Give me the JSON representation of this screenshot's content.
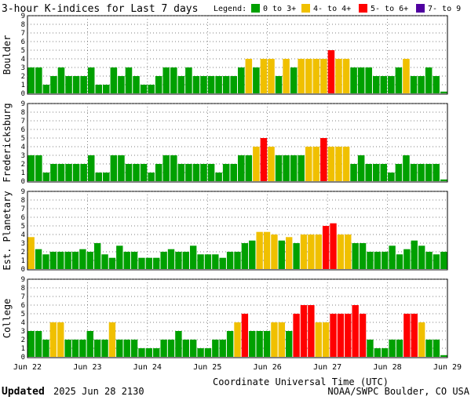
{
  "chart_data": {
    "type": "bar",
    "title": "3-hour K-indices for Last 7 days",
    "legend": {
      "label": "Legend:",
      "entries": [
        {
          "label": "0 to 3+",
          "color": "#00a000"
        },
        {
          "label": "4- to 4+",
          "color": "#f0c000"
        },
        {
          "label": "5- to 6+",
          "color": "#ff0000"
        },
        {
          "label": "7- to 9",
          "color": "#5000a0"
        }
      ]
    },
    "xlabel": "Coordinate Universal Time (UTC)",
    "x_ticks": [
      "Jun 22",
      "Jun 23",
      "Jun 24",
      "Jun 25",
      "Jun 26",
      "Jun 27",
      "Jun 28",
      "Jun 29"
    ],
    "ylim": [
      0,
      9
    ],
    "y_ticks": [
      "0",
      "1",
      "2",
      "3",
      "4",
      "5",
      "6",
      "7",
      "8",
      "9"
    ],
    "series": [
      {
        "name": "Boulder",
        "values": [
          3,
          3,
          1,
          2,
          3,
          2,
          2,
          2,
          3,
          1,
          1,
          3,
          2,
          3,
          2,
          1,
          1,
          2,
          3,
          3,
          2,
          3,
          2,
          2,
          2,
          2,
          2,
          2,
          3,
          4,
          3,
          4,
          4,
          2,
          4,
          3,
          4,
          4,
          4,
          4,
          5,
          4,
          4,
          3,
          3,
          3,
          2,
          2,
          2,
          3,
          4,
          2,
          2,
          3,
          2,
          0
        ]
      },
      {
        "name": "Fredericksburg",
        "values": [
          3,
          3,
          1,
          2,
          2,
          2,
          2,
          2,
          3,
          1,
          1,
          3,
          3,
          2,
          2,
          2,
          1,
          2,
          3,
          3,
          2,
          2,
          2,
          2,
          2,
          1,
          2,
          2,
          3,
          3,
          4,
          5,
          4,
          3,
          3,
          3,
          3,
          4,
          4,
          5,
          4,
          4,
          4,
          2,
          3,
          2,
          2,
          2,
          1,
          2,
          3,
          2,
          2,
          2,
          2,
          0
        ]
      },
      {
        "name": "Est. Planetary",
        "values": [
          3.7,
          2.3,
          1.7,
          2,
          2,
          2,
          2,
          2.3,
          2,
          3,
          1.7,
          1.3,
          2.7,
          2,
          2,
          1.3,
          1.3,
          1.3,
          2,
          2.3,
          2,
          2,
          2.7,
          1.7,
          1.7,
          1.7,
          1.3,
          2,
          2,
          3,
          3.3,
          4.3,
          4.3,
          4,
          3.3,
          3.7,
          3,
          4,
          4,
          4,
          5,
          5.3,
          4,
          4,
          3,
          3,
          2,
          2,
          2,
          2.7,
          1.7,
          2.3,
          3.3,
          2.7,
          2,
          1.7,
          2
        ]
      },
      {
        "name": "College",
        "values": [
          3,
          3,
          2,
          4,
          4,
          2,
          2,
          2,
          3,
          2,
          2,
          4,
          2,
          2,
          2,
          1,
          1,
          1,
          2,
          2,
          3,
          2,
          2,
          1,
          1,
          2,
          2,
          3,
          4,
          5,
          3,
          3,
          3,
          4,
          4,
          3,
          5,
          6,
          6,
          4,
          4,
          5,
          5,
          5,
          6,
          5,
          2,
          1,
          1,
          2,
          2,
          5,
          5,
          4,
          2,
          2,
          0
        ]
      }
    ]
  },
  "footer": {
    "updated_label": "Updated",
    "updated_value": "2025 Jun 28 2130",
    "credit": "NOAA/SWPC Boulder, CO USA"
  }
}
